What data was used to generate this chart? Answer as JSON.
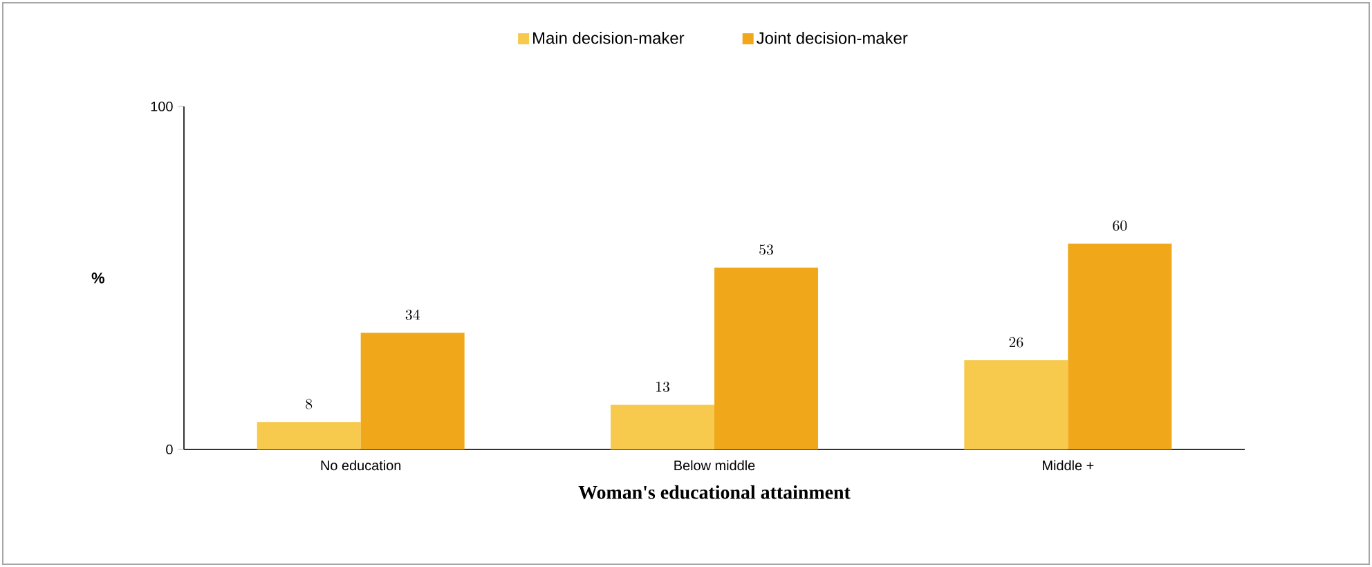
{
  "chart_data": {
    "type": "bar",
    "categories": [
      "No education",
      "Below middle",
      "Middle +"
    ],
    "series": [
      {
        "name": "Main decision-maker",
        "color": "#f7c94c",
        "values": [
          8,
          13,
          26
        ]
      },
      {
        "name": "Joint decision-maker",
        "color": "#f0a81a",
        "values": [
          34,
          53,
          60
        ]
      }
    ],
    "xlabel": "Woman's educational attainment",
    "ylabel": "%",
    "ylim": [
      0,
      100
    ],
    "yticks": [
      0,
      100
    ],
    "grid": false,
    "legend": "top",
    "data_labels": true
  }
}
